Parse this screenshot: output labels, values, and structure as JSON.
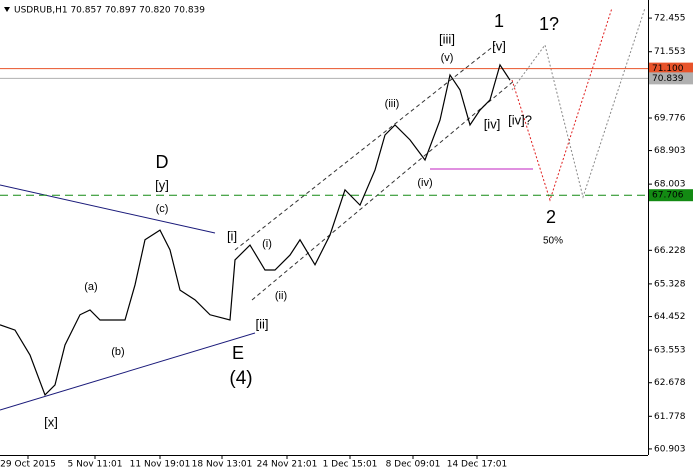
{
  "chart_data": {
    "type": "line",
    "title": "USDRUB,H1  70.857 70.897 70.820 70.839",
    "color": "#000000",
    "x": [
      0,
      15,
      30,
      45,
      55,
      65,
      80,
      90,
      100,
      115,
      125,
      135,
      145,
      160,
      170,
      180,
      195,
      210,
      230,
      235,
      250,
      265,
      275,
      290,
      300,
      315,
      330,
      345,
      360,
      375,
      385,
      395,
      410,
      425,
      440,
      450,
      460,
      470,
      480,
      490,
      500,
      510
    ],
    "values": [
      64.23,
      64.09,
      63.42,
      62.35,
      62.62,
      63.69,
      64.5,
      64.63,
      64.36,
      64.36,
      64.36,
      65.3,
      66.51,
      66.77,
      66.24,
      65.16,
      64.9,
      64.5,
      64.36,
      65.97,
      66.37,
      65.7,
      65.7,
      66.1,
      66.51,
      65.84,
      66.64,
      67.85,
      67.44,
      68.38,
      69.32,
      69.59,
      69.19,
      68.65,
      69.72,
      70.93,
      70.53,
      69.59,
      69.99,
      70.26,
      71.2,
      70.79
    ],
    "xlim": [
      0,
      648
    ],
    "xticks": [
      {
        "value": 28,
        "label": "29 Oct 2015"
      },
      {
        "value": 95,
        "label": "5 Nov 11:01"
      },
      {
        "value": 160,
        "label": "11 Nov 19:01"
      },
      {
        "value": 222,
        "label": "18 Nov 13:01"
      },
      {
        "value": 287,
        "label": "24 Nov 21:01"
      },
      {
        "value": 350,
        "label": "1 Dec 15:01"
      },
      {
        "value": 413,
        "label": "8 Dec 09:01"
      },
      {
        "value": 477,
        "label": "14 Dec 17:01"
      }
    ],
    "ylim": [
      60.74,
      72.94
    ],
    "yticks": [
      {
        "value": 72.455,
        "label": "72.455"
      },
      {
        "value": 71.553,
        "label": "71.553"
      },
      {
        "value": 69.776,
        "label": "69.776"
      },
      {
        "value": 68.903,
        "label": "68.903"
      },
      {
        "value": 68.003,
        "label": "68.003"
      },
      {
        "value": 66.228,
        "label": "66.228"
      },
      {
        "value": 65.328,
        "label": "65.328"
      },
      {
        "value": 64.452,
        "label": "64.452"
      },
      {
        "value": 63.553,
        "label": "63.553"
      },
      {
        "value": 62.678,
        "label": "62.678"
      },
      {
        "value": 61.778,
        "label": "61.778"
      },
      {
        "value": 60.903,
        "label": "60.903"
      }
    ],
    "levels": [
      {
        "value": 71.1,
        "label": "71.100",
        "color": "#e8532a"
      },
      {
        "value": 70.839,
        "label": "70.839",
        "color": "#b0b0b0"
      },
      {
        "value": 67.706,
        "label": "67.706",
        "color": "#138a13"
      }
    ],
    "annotations": [
      {
        "text": "[iii]",
        "color": "#2e8b22"
      },
      {
        "text": "(v)",
        "color": "#2a2a8a"
      },
      {
        "text": "1",
        "color": "#8b1a1a"
      },
      {
        "text": "[v]",
        "color": "#2e8b22"
      },
      {
        "text": "1?",
        "color": "#909090"
      },
      {
        "text": "(iii)",
        "color": "#2a2a8a"
      },
      {
        "text": "[iv]",
        "color": "#2e8b22"
      },
      {
        "text": "[iv]?",
        "color": "#909090"
      },
      {
        "text": "(iv)",
        "color": "#2a2a8a"
      },
      {
        "text": "2",
        "color": "#8b1a1a"
      },
      {
        "text": "50%",
        "color": "#2a2a8a"
      },
      {
        "text": "D",
        "color": "#8b1a1a"
      },
      {
        "text": "[y]",
        "color": "#2e8b22"
      },
      {
        "text": "(c)",
        "color": "#2a2a8a"
      },
      {
        "text": "[i]",
        "color": "#2e8b22"
      },
      {
        "text": "(i)",
        "color": "#2a2a8a"
      },
      {
        "text": "(ii)",
        "color": "#2a2a8a"
      },
      {
        "text": "[ii]",
        "color": "#2e8b22"
      },
      {
        "text": "E",
        "color": "#8b1a1a"
      },
      {
        "text": "(4)",
        "color": "#2a2a8a"
      },
      {
        "text": "(a)",
        "color": "#2a2a8a"
      },
      {
        "text": "(b)",
        "color": "#2a2a8a"
      },
      {
        "text": "[x]",
        "color": "#2e8b22"
      }
    ]
  }
}
